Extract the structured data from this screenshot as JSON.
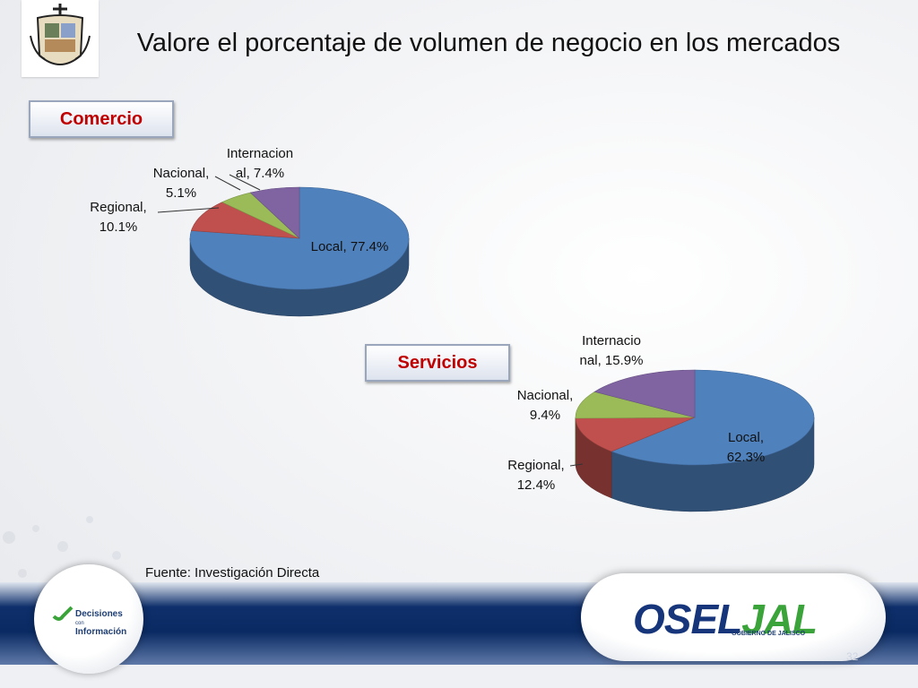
{
  "title": "Valore el porcentaje de  volumen de negocio en los mercados",
  "sections": {
    "comercio_label": "Comercio",
    "servicios_label": "Servicios"
  },
  "source": "Fuente: Investigación Directa",
  "footer": {
    "decisiones_line1": "Decisiones",
    "decisiones_line2": "con",
    "decisiones_line3": "Información",
    "brand_sel": "SEL",
    "brand_jal": "JAL",
    "brand_o": "O",
    "gobierno": "GOBIERNO DE JALISCO",
    "page_number": "32"
  },
  "colors": {
    "local": "#4f81bd",
    "regional": "#c0504d",
    "nacional": "#9bbb59",
    "internacional": "#8064a2",
    "section_label": "#c00000"
  },
  "chart_data": [
    {
      "type": "pie",
      "title": "Comercio",
      "categories": [
        "Local",
        "Regional",
        "Nacional",
        "Internacional"
      ],
      "values": [
        77.4,
        10.1,
        5.1,
        7.4
      ],
      "labels": [
        [
          "Local, 77.4%"
        ],
        [
          "Regional,",
          "10.1%"
        ],
        [
          "Nacional,",
          "5.1%"
        ],
        [
          "Internacion",
          "al, 7.4%"
        ]
      ]
    },
    {
      "type": "pie",
      "title": "Servicios",
      "categories": [
        "Local",
        "Regional",
        "Nacional",
        "Internacional"
      ],
      "values": [
        62.3,
        12.4,
        9.4,
        15.9
      ],
      "labels": [
        [
          "Local,",
          "62.3%"
        ],
        [
          "Regional,",
          "12.4%"
        ],
        [
          "Nacional,",
          "9.4%"
        ],
        [
          "Internacio",
          "nal, 15.9%"
        ]
      ]
    }
  ]
}
